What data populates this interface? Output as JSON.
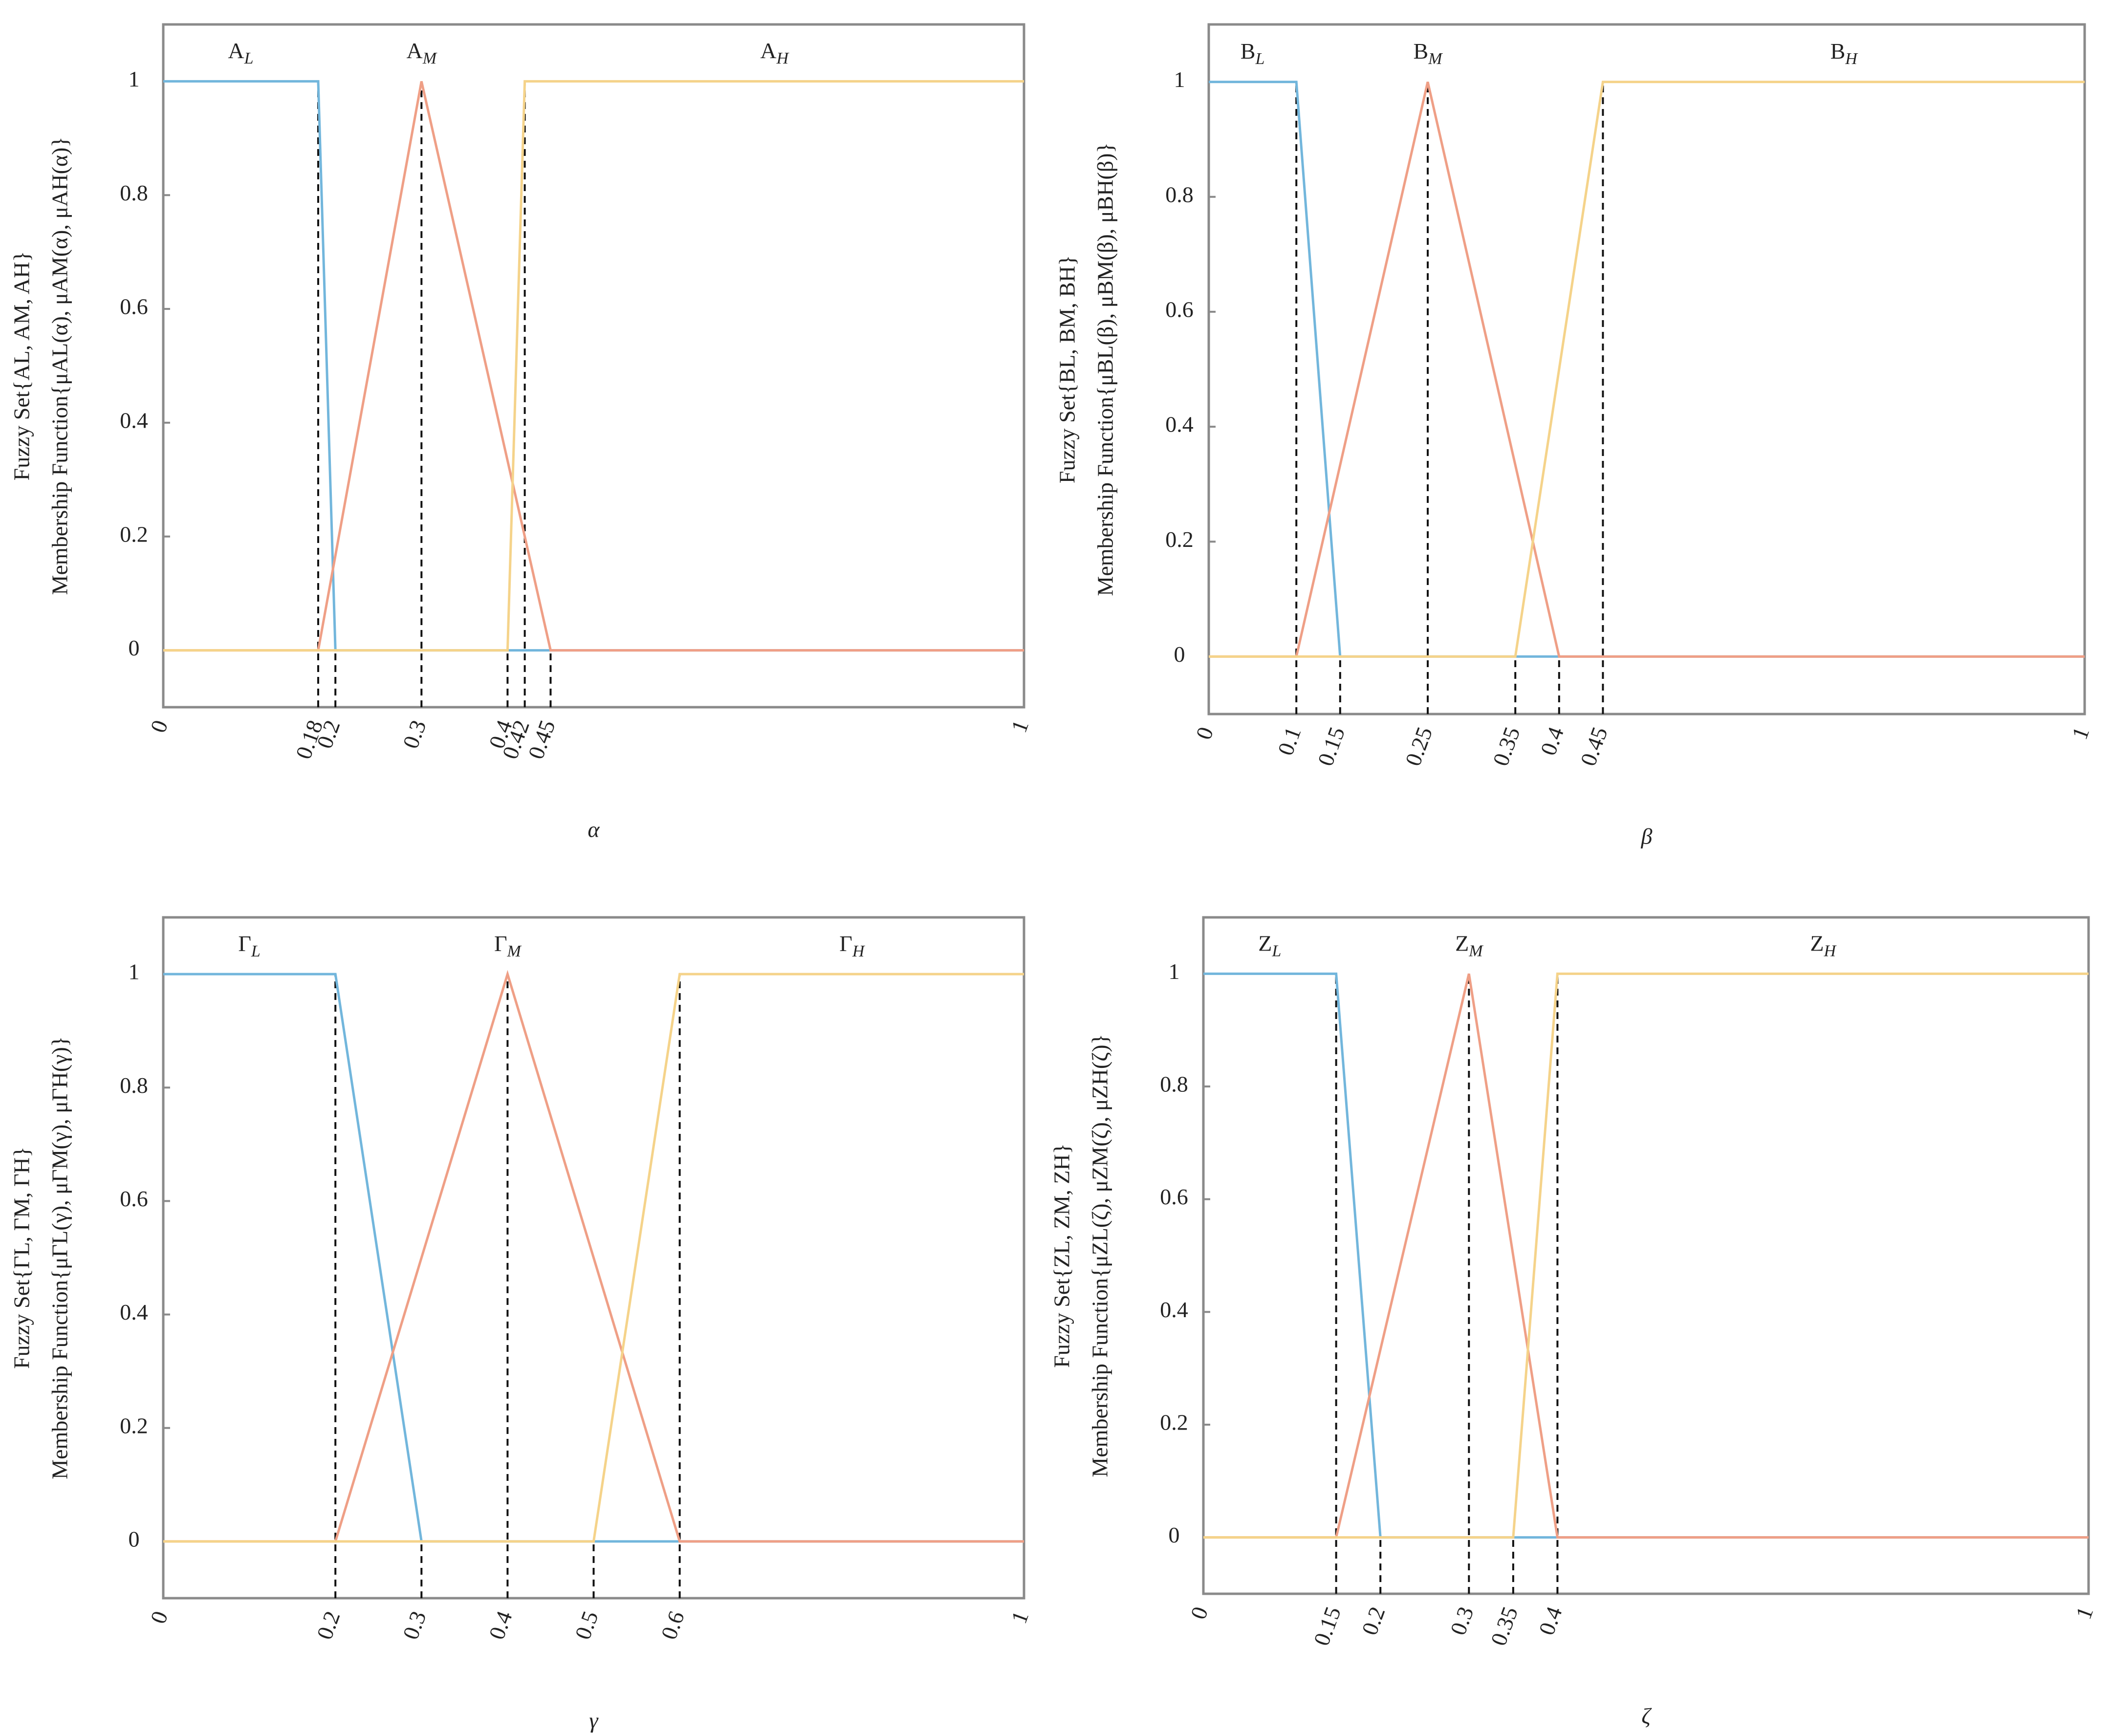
{
  "chart_data": [
    {
      "type": "line",
      "xlabel": "α",
      "ylabel": [
        "Fuzzy Set{AL, AM, AH}",
        "Membership Function{μAL(α), μAM(α), μAH(α)}"
      ],
      "xlim": [
        0,
        1
      ],
      "ylim": [
        -0.1,
        1.1
      ],
      "xticks": [
        0,
        0.18,
        0.2,
        0.3,
        0.4,
        0.42,
        0.45,
        1
      ],
      "yticks": [
        0,
        0.2,
        0.4,
        0.6,
        0.8,
        1
      ],
      "series": [
        {
          "name": "AL",
          "color": "#72b6dc",
          "x": [
            0,
            0.18,
            0.2,
            1
          ],
          "values": [
            1,
            1,
            0,
            0
          ]
        },
        {
          "name": "AM",
          "color": "#ef9f86",
          "x": [
            0,
            0.18,
            0.3,
            0.45,
            1
          ],
          "values": [
            0,
            0,
            1,
            0,
            0
          ]
        },
        {
          "name": "AH",
          "color": "#f5d38a",
          "x": [
            0,
            0.4,
            0.42,
            1
          ],
          "values": [
            0,
            0,
            1,
            1
          ]
        }
      ]
    },
    {
      "type": "line",
      "xlabel": "β",
      "ylabel": [
        "Fuzzy Set{BL, BM, BH}",
        "Membership Function{μBL(β), μBM(β), μBH(β)}"
      ],
      "xlim": [
        0,
        1
      ],
      "ylim": [
        -0.1,
        1.1
      ],
      "xticks": [
        0,
        0.1,
        0.15,
        0.25,
        0.35,
        0.4,
        0.45,
        1
      ],
      "yticks": [
        0,
        0.2,
        0.4,
        0.6,
        0.8,
        1
      ],
      "series": [
        {
          "name": "BL",
          "color": "#72b6dc",
          "x": [
            0,
            0.1,
            0.15,
            1
          ],
          "values": [
            1,
            1,
            0,
            0
          ]
        },
        {
          "name": "BM",
          "color": "#ef9f86",
          "x": [
            0,
            0.1,
            0.25,
            0.4,
            1
          ],
          "values": [
            0,
            0,
            1,
            0,
            0
          ]
        },
        {
          "name": "BH",
          "color": "#f5d38a",
          "x": [
            0,
            0.35,
            0.45,
            1
          ],
          "values": [
            0,
            0,
            1,
            1
          ]
        }
      ]
    },
    {
      "type": "line",
      "xlabel": "γ",
      "ylabel": [
        "Fuzzy Set{ΓL, ΓM, ΓH}",
        "Membership Function{μΓL(γ), μΓM(γ), μΓH(γ)}"
      ],
      "xlim": [
        0,
        1
      ],
      "ylim": [
        -0.1,
        1.1
      ],
      "xticks": [
        0,
        0.2,
        0.3,
        0.4,
        0.5,
        0.6,
        1
      ],
      "yticks": [
        0,
        0.2,
        0.4,
        0.6,
        0.8,
        1
      ],
      "series": [
        {
          "name": "ΓL",
          "color": "#72b6dc",
          "x": [
            0,
            0.2,
            0.3,
            1
          ],
          "values": [
            1,
            1,
            0,
            0
          ]
        },
        {
          "name": "ΓM",
          "color": "#ef9f86",
          "x": [
            0,
            0.2,
            0.4,
            0.6,
            1
          ],
          "values": [
            0,
            0,
            1,
            0,
            0
          ]
        },
        {
          "name": "ΓH",
          "color": "#f5d38a",
          "x": [
            0,
            0.5,
            0.6,
            1
          ],
          "values": [
            0,
            0,
            1,
            1
          ]
        }
      ]
    },
    {
      "type": "line",
      "xlabel": "ζ",
      "ylabel": [
        "Fuzzy Set{ZL, ZM, ZH}",
        "Membership Function{μZL(ζ), μZM(ζ), μZH(ζ)}"
      ],
      "xlim": [
        0,
        1
      ],
      "ylim": [
        -0.1,
        1.1
      ],
      "xticks": [
        0,
        0.15,
        0.2,
        0.3,
        0.35,
        0.4,
        1
      ],
      "yticks": [
        0,
        0.2,
        0.4,
        0.6,
        0.8,
        1
      ],
      "series": [
        {
          "name": "ZL",
          "color": "#72b6dc",
          "x": [
            0,
            0.15,
            0.2,
            1
          ],
          "values": [
            1,
            1,
            0,
            0
          ]
        },
        {
          "name": "ZM",
          "color": "#ef9f86",
          "x": [
            0,
            0.15,
            0.3,
            0.4,
            1
          ],
          "values": [
            0,
            0,
            1,
            0,
            0
          ]
        },
        {
          "name": "ZH",
          "color": "#f5d38a",
          "x": [
            0,
            0.35,
            0.4,
            1
          ],
          "values": [
            0,
            0,
            1,
            1
          ]
        }
      ]
    }
  ]
}
